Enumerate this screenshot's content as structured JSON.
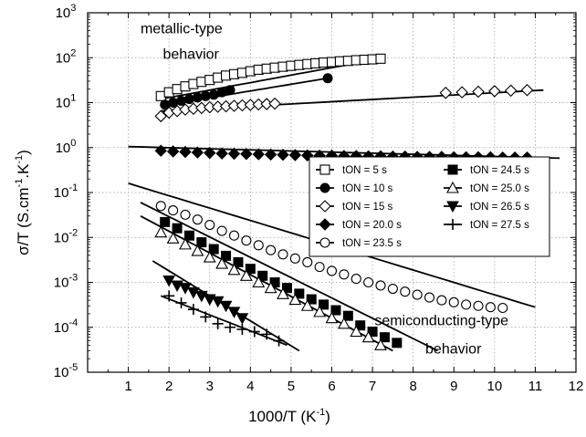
{
  "chart_data": {
    "type": "scatter",
    "xlabel": {
      "main": "1000/T (K",
      "sup": "-1",
      "tail": ")"
    },
    "ylabel": {
      "main": "σ/T (S.cm",
      "sup1": "-1",
      "mid": ".K",
      "sup2": "-1",
      "tail": ")"
    },
    "xlim": [
      0,
      12
    ],
    "ylim": [
      1e-05,
      1000
    ],
    "y_scale": "log",
    "grid": true,
    "x_ticks": [
      {
        "value": 0,
        "label": ""
      },
      {
        "value": 1,
        "label": "1"
      },
      {
        "value": 2,
        "label": "2"
      },
      {
        "value": 3,
        "label": "3"
      },
      {
        "value": 4,
        "label": "4"
      },
      {
        "value": 5,
        "label": "5"
      },
      {
        "value": 6,
        "label": "6"
      },
      {
        "value": 7,
        "label": "7"
      },
      {
        "value": 8,
        "label": "8"
      },
      {
        "value": 9,
        "label": "9"
      },
      {
        "value": 10,
        "label": "10"
      },
      {
        "value": 11,
        "label": "11"
      },
      {
        "value": 12,
        "label": "12"
      }
    ],
    "y_ticks": [
      {
        "value": 1e-05,
        "base": "10",
        "exp": "-5"
      },
      {
        "value": 0.0001,
        "base": "10",
        "exp": "-4"
      },
      {
        "value": 0.001,
        "base": "10",
        "exp": "-3"
      },
      {
        "value": 0.01,
        "base": "10",
        "exp": "-2"
      },
      {
        "value": 0.1,
        "base": "10",
        "exp": "-1"
      },
      {
        "value": 1,
        "base": "10",
        "exp": "0"
      },
      {
        "value": 10,
        "base": "10",
        "exp": "1"
      },
      {
        "value": 100,
        "base": "10",
        "exp": "2"
      },
      {
        "value": 1000,
        "base": "10",
        "exp": "3"
      }
    ],
    "annotations": [
      {
        "text": "metallic-type",
        "x": 1.3,
        "y": 350
      },
      {
        "text": "behavior",
        "x": 1.85,
        "y": 95
      },
      {
        "text": "semiconducting-type",
        "x": 7.05,
        "y": 0.00011
      },
      {
        "text": "behavior",
        "x": 8.3,
        "y": 2.6e-05
      }
    ],
    "legend_position": "right-center",
    "series": [
      {
        "name": "tON = 5 s",
        "marker": "square-open",
        "x": [
          1.8,
          2.0,
          2.2,
          2.4,
          2.6,
          2.8,
          3.0,
          3.2,
          3.4,
          3.6,
          3.8,
          4.0,
          4.2,
          4.4,
          4.6,
          4.8,
          5.0,
          5.2,
          5.4,
          5.6,
          5.8,
          6.0,
          6.2,
          6.4,
          6.6,
          6.8,
          7.0,
          7.2
        ],
        "y": [
          14,
          17,
          20,
          23,
          26,
          29,
          32,
          36,
          40,
          43,
          46,
          50,
          54,
          57,
          60,
          63,
          66,
          69,
          72,
          75,
          78,
          80,
          83,
          85,
          88,
          90,
          92,
          95
        ],
        "fit_x": [
          1.8,
          7.2
        ],
        "fit_y": [
          12,
          95
        ]
      },
      {
        "name": "tON = 10 s",
        "marker": "circle-filled",
        "x": [
          1.9,
          2.1,
          2.3,
          2.5,
          2.7,
          2.9,
          3.1,
          3.3,
          3.5,
          5.9
        ],
        "y": [
          9,
          10,
          11,
          12,
          13,
          14,
          15,
          17,
          19,
          35
        ],
        "fit_x": [
          1.8,
          5.9
        ],
        "fit_y": [
          8.5,
          35
        ]
      },
      {
        "name": "tON = 15 s",
        "marker": "diamond-open",
        "x": [
          1.8,
          2.0,
          2.2,
          2.4,
          2.6,
          2.8,
          3.0,
          3.2,
          3.4,
          3.6,
          3.8,
          4.0,
          4.2,
          4.4,
          4.6,
          8.8,
          9.2,
          9.6,
          10.0,
          10.4,
          10.8
        ],
        "y": [
          5,
          6,
          6.5,
          7,
          7.3,
          7.6,
          7.9,
          8.1,
          8.3,
          8.5,
          8.7,
          8.9,
          9.1,
          9.3,
          9.5,
          16.5,
          17,
          17.5,
          18,
          18.5,
          19
        ],
        "fit_x": [
          1.8,
          11.2
        ],
        "fit_y": [
          6.5,
          19
        ]
      },
      {
        "name": "tON = 20.0 s",
        "marker": "diamond-filled",
        "x": [
          1.8,
          2.1,
          2.4,
          2.7,
          3.0,
          3.3,
          3.6,
          3.9,
          4.2,
          4.5,
          4.8,
          5.1,
          5.4,
          5.7,
          6.0,
          6.3,
          6.6,
          6.9,
          7.2,
          7.5,
          7.8,
          8.1,
          8.4,
          8.7,
          9.0,
          9.3,
          9.6,
          9.9,
          10.2,
          10.5,
          10.8
        ],
        "y": [
          0.85,
          0.82,
          0.8,
          0.78,
          0.76,
          0.74,
          0.73,
          0.72,
          0.71,
          0.7,
          0.69,
          0.68,
          0.67,
          0.66,
          0.66,
          0.65,
          0.65,
          0.64,
          0.64,
          0.63,
          0.63,
          0.62,
          0.62,
          0.62,
          0.61,
          0.61,
          0.61,
          0.61,
          0.6,
          0.6,
          0.6
        ],
        "fit_x": [
          1.0,
          11.6
        ],
        "fit_y": [
          1.05,
          0.58
        ]
      },
      {
        "name": "tON = 24.5 s",
        "marker": "square-filled",
        "x": [
          1.9,
          2.2,
          2.5,
          2.8,
          3.1,
          3.4,
          3.7,
          4.0,
          4.3,
          4.6,
          4.9,
          5.2,
          5.5,
          5.8,
          6.1,
          6.4,
          6.7,
          7.0,
          7.3,
          7.6
        ],
        "y": [
          0.022,
          0.016,
          0.011,
          0.0078,
          0.0055,
          0.0039,
          0.0028,
          0.002,
          0.0014,
          0.001,
          0.00075,
          0.00056,
          0.00042,
          0.00032,
          0.00024,
          0.00018,
          0.00011,
          8e-05,
          6e-05,
          4.5e-05
        ],
        "fit_x": [
          1.3,
          8.6
        ],
        "fit_y": [
          0.06,
          3e-05
        ]
      },
      {
        "name": "tON = 25.0 s",
        "marker": "triangle-up-open",
        "x": [
          1.8,
          2.1,
          2.4,
          2.7,
          3.0,
          3.3,
          3.6,
          3.9,
          4.2,
          4.5,
          4.8,
          5.1,
          5.4,
          5.7,
          6.0,
          6.3,
          6.6,
          6.9,
          7.2
        ],
        "y": [
          0.013,
          0.0095,
          0.007,
          0.005,
          0.0036,
          0.0026,
          0.0019,
          0.0014,
          0.001,
          0.00075,
          0.00055,
          0.00041,
          0.0003,
          0.00022,
          0.00016,
          0.00012,
          8e-05,
          6e-05,
          4e-05
        ],
        "fit_x": [
          1.3,
          7.5
        ],
        "fit_y": [
          0.03,
          3e-05
        ]
      },
      {
        "name": "tON = 26.5 s",
        "marker": "triangle-down-filled",
        "x": [
          2.0,
          2.2,
          2.4,
          2.6,
          2.8,
          3.0,
          3.2,
          3.4,
          3.6,
          3.8
        ],
        "y": [
          0.0011,
          0.00085,
          0.00075,
          0.0006,
          0.0005,
          0.00042,
          0.00038,
          0.0003,
          0.00022,
          0.00016
        ],
        "fit_x": [
          1.6,
          5.2
        ],
        "fit_y": [
          0.003,
          3e-05
        ]
      },
      {
        "name": "tON = 23.5 s",
        "marker": "circle-open",
        "x": [
          1.8,
          2.1,
          2.4,
          2.7,
          3.0,
          3.3,
          3.6,
          3.9,
          4.2,
          4.5,
          4.8,
          5.1,
          5.4,
          5.7,
          6.0,
          6.3,
          6.6,
          6.9,
          7.2,
          7.5,
          7.8,
          8.1,
          8.4,
          8.7,
          9.0,
          9.3,
          9.6,
          9.9,
          10.2
        ],
        "y": [
          0.05,
          0.04,
          0.032,
          0.025,
          0.019,
          0.014,
          0.011,
          0.0085,
          0.0067,
          0.0052,
          0.0042,
          0.0034,
          0.0028,
          0.0022,
          0.0018,
          0.0015,
          0.0012,
          0.001,
          0.00085,
          0.00072,
          0.00062,
          0.00053,
          0.00046,
          0.0004,
          0.00036,
          0.00032,
          0.0003,
          0.00028,
          0.00027
        ],
        "fit_x": [
          1.0,
          11.0
        ],
        "fit_y": [
          0.16,
          0.00028
        ]
      },
      {
        "name": "tON = 27.5 s",
        "marker": "plus",
        "x": [
          2.0,
          2.3,
          2.6,
          2.9,
          3.2,
          3.5,
          3.8,
          4.1,
          4.4,
          4.7
        ],
        "y": [
          0.0005,
          0.00035,
          0.00025,
          0.00017,
          0.00012,
          0.0001,
          9e-05,
          8e-05,
          7e-05,
          5e-05
        ],
        "fit_x": [
          1.8,
          4.9
        ],
        "fit_y": [
          0.0005,
          4e-05
        ]
      }
    ]
  }
}
